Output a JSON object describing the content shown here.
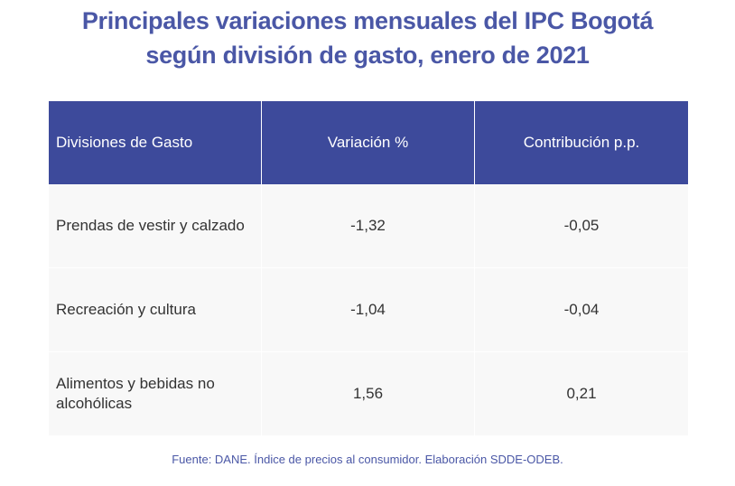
{
  "title": {
    "line1": "Principales variaciones mensuales del IPC Bogotá",
    "line2": "según división de gasto, enero de 2021"
  },
  "table": {
    "headers": [
      "Divisiones de Gasto",
      "Variación %",
      "Contribución p.p."
    ],
    "rows": [
      {
        "division": "Prendas de vestir y calzado",
        "variacion": "-1,32",
        "contribucion": "-0,05"
      },
      {
        "division": "Recreación y cultura",
        "variacion": "-1,04",
        "contribucion": "-0,04"
      },
      {
        "division": "Alimentos y bebidas no alcohólicas",
        "variacion": "1,56",
        "contribucion": "0,21"
      }
    ]
  },
  "footer": "Fuente: DANE. Índice de precios al consumidor. Elaboración SDDE-ODEB.",
  "colors": {
    "title": "#4a57a6",
    "header_bg": "#3d4a9b",
    "row_bg": "#f8f8f8"
  }
}
